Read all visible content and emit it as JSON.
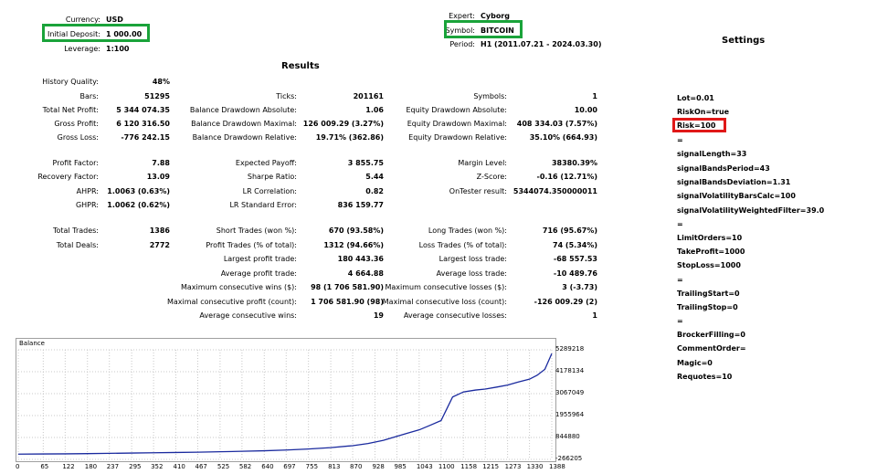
{
  "header": {
    "currency_label": "Currency:",
    "currency_value": "USD",
    "deposit_label": "Initial Deposit:",
    "deposit_value": "1 000.00",
    "leverage_label": "Leverage:",
    "leverage_value": "1:100",
    "expert_label": "Expert:",
    "expert_value": "Cyborg",
    "symbol_label": "Symbol:",
    "symbol_value": "BITCOIN",
    "period_label": "Period:",
    "period_value": "H1 (2011.07.21 - 2024.03.30)"
  },
  "results_title": "Results",
  "settings_title": "Settings",
  "col1": [
    {
      "l": "History Quality:",
      "v": "48%"
    },
    {
      "l": "Bars:",
      "v": "51295"
    },
    {
      "l": "Total Net Profit:",
      "v": "5 344 074.35"
    },
    {
      "l": "Gross Profit:",
      "v": "6 120 316.50"
    },
    {
      "l": "Gross Loss:",
      "v": "-776 242.15"
    },
    {
      "l": "Profit Factor:",
      "v": "7.88"
    },
    {
      "l": "Recovery Factor:",
      "v": "13.09"
    },
    {
      "l": "AHPR:",
      "v": "1.0063 (0.63%)"
    },
    {
      "l": "GHPR:",
      "v": "1.0062 (0.62%)"
    },
    {
      "l": "Total Trades:",
      "v": "1386"
    },
    {
      "l": "Total Deals:",
      "v": "2772"
    }
  ],
  "col2": [
    {
      "l": "Ticks:",
      "v": "201161"
    },
    {
      "l": "Balance Drawdown Absolute:",
      "v": "1.06"
    },
    {
      "l": "Balance Drawdown Maximal:",
      "v": "126 009.29 (3.27%)"
    },
    {
      "l": "Balance Drawdown Relative:",
      "v": "19.71% (362.86)"
    },
    {
      "l": "Expected Payoff:",
      "v": "3 855.75"
    },
    {
      "l": "Sharpe Ratio:",
      "v": "5.44"
    },
    {
      "l": "LR Correlation:",
      "v": "0.82"
    },
    {
      "l": "LR Standard Error:",
      "v": "836 159.77"
    },
    {
      "l": "Short Trades (won %):",
      "v": "670 (93.58%)"
    },
    {
      "l": "Profit Trades (% of total):",
      "v": "1312 (94.66%)"
    },
    {
      "l": "Largest profit trade:",
      "v": "180 443.36"
    },
    {
      "l": "Average profit trade:",
      "v": "4 664.88"
    },
    {
      "l": "Maximum consecutive wins ($):",
      "v": "98 (1 706 581.90)"
    },
    {
      "l": "Maximal consecutive profit (count):",
      "v": "1 706 581.90 (98)"
    },
    {
      "l": "Average consecutive wins:",
      "v": "19"
    }
  ],
  "col3": [
    {
      "l": "Symbols:",
      "v": "1"
    },
    {
      "l": "Equity Drawdown Absolute:",
      "v": "10.00"
    },
    {
      "l": "Equity Drawdown Maximal:",
      "v": "408 334.03 (7.57%)"
    },
    {
      "l": "Equity Drawdown Relative:",
      "v": "35.10% (664.93)"
    },
    {
      "l": "Margin Level:",
      "v": "38380.39%"
    },
    {
      "l": "Z-Score:",
      "v": "-0.16 (12.71%)"
    },
    {
      "l": "OnTester result:",
      "v": "5344074.350000011"
    },
    {
      "l": "Long Trades (won %):",
      "v": "716 (95.67%)"
    },
    {
      "l": "Loss Trades (% of total):",
      "v": "74 (5.34%)"
    },
    {
      "l": "Largest loss trade:",
      "v": "-68 557.53"
    },
    {
      "l": "Average loss trade:",
      "v": "-10 489.76"
    },
    {
      "l": "Maximum consecutive losses ($):",
      "v": "3 (-3.73)"
    },
    {
      "l": "Maximal consecutive loss (count):",
      "v": "-126 009.29 (2)"
    },
    {
      "l": "Average consecutive losses:",
      "v": "1"
    }
  ],
  "settings": [
    "Lot=0.01",
    "RiskOn=true",
    "Risk=100",
    "=",
    "signalLength=33",
    "signalBandsPeriod=43",
    "signalBandsDeviation=1.31",
    "signalVolatilityBarsCalc=100",
    "signalVolatilityWeightedFilter=39.0",
    "=",
    "LimitOrders=10",
    "TakeProfit=1000",
    "StopLoss=1000",
    "=",
    "TrailingStart=0",
    "TrailingStop=0",
    "=",
    "BrockerFilling=0",
    "CommentOrder=",
    "Magic=0",
    "Requotes=10"
  ],
  "highlight_colors": {
    "green": "#1aa33a",
    "red": "#e01818",
    "line": "#1a2a9e"
  },
  "chart_data": {
    "type": "line",
    "title": "Balance",
    "x_ticks": [
      "0",
      "65",
      "122",
      "180",
      "237",
      "295",
      "352",
      "410",
      "467",
      "525",
      "582",
      "640",
      "697",
      "755",
      "813",
      "870",
      "928",
      "985",
      "1043",
      "1100",
      "1158",
      "1215",
      "1273",
      "1330",
      "1388"
    ],
    "y_ticks": [
      "5289218",
      "4178134",
      "3067049",
      "1955964",
      "844880",
      "-266205"
    ],
    "ylim": [
      -266205,
      5289218
    ],
    "xlim": [
      0,
      1388
    ],
    "series": [
      {
        "x": [
          0,
          65,
          122,
          180,
          237,
          295,
          352,
          410,
          467,
          525,
          582,
          640,
          697,
          755,
          813,
          870,
          910,
          950,
          985,
          1010,
          1043,
          1070,
          1100,
          1115,
          1130,
          1158,
          1190,
          1215,
          1245,
          1273,
          1300,
          1330,
          1350,
          1370,
          1388
        ],
        "values": [
          1000,
          8000,
          15000,
          25000,
          40000,
          55000,
          70000,
          85000,
          100000,
          120000,
          145000,
          170000,
          210000,
          260000,
          330000,
          430000,
          540000,
          700000,
          900000,
          1050000,
          1230000,
          1450000,
          1700000,
          2300000,
          2900000,
          3150000,
          3250000,
          3300000,
          3400000,
          3500000,
          3650000,
          3800000,
          4000000,
          4300000,
          5100000
        ]
      }
    ]
  }
}
